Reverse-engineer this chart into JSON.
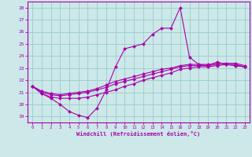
{
  "xlabel": "Windchill (Refroidissement éolien,°C)",
  "ylim": [
    18.5,
    28.5
  ],
  "xlim": [
    -0.5,
    23.5
  ],
  "yticks": [
    19,
    20,
    21,
    22,
    23,
    24,
    25,
    26,
    27,
    28
  ],
  "xticks": [
    0,
    1,
    2,
    3,
    4,
    5,
    6,
    7,
    8,
    9,
    10,
    11,
    12,
    13,
    14,
    15,
    16,
    17,
    18,
    19,
    20,
    21,
    22,
    23
  ],
  "bg_color": "#cce8e8",
  "line_color": "#aa00aa",
  "grid_color": "#99cccc",
  "series": [
    {
      "y": [
        21.5,
        20.9,
        20.5,
        20.0,
        19.4,
        19.1,
        18.9,
        19.7,
        21.2,
        23.1,
        24.6,
        24.8,
        25.0,
        25.8,
        26.3,
        26.3,
        28.0,
        23.9,
        23.3,
        23.2,
        23.5,
        23.3,
        23.2,
        23.1
      ]
    },
    {
      "y": [
        21.5,
        21.1,
        20.9,
        20.8,
        20.9,
        21.0,
        21.1,
        21.3,
        21.6,
        21.9,
        22.1,
        22.3,
        22.5,
        22.7,
        22.9,
        23.0,
        23.2,
        23.3,
        23.3,
        23.3,
        23.4,
        23.4,
        23.4,
        23.2
      ]
    },
    {
      "y": [
        21.5,
        21.0,
        20.8,
        20.7,
        20.8,
        20.9,
        21.0,
        21.2,
        21.4,
        21.7,
        21.9,
        22.1,
        22.3,
        22.5,
        22.7,
        22.9,
        23.1,
        23.2,
        23.2,
        23.2,
        23.3,
        23.3,
        23.3,
        23.1
      ]
    },
    {
      "y": [
        21.5,
        20.9,
        20.6,
        20.5,
        20.5,
        20.5,
        20.6,
        20.8,
        21.0,
        21.2,
        21.5,
        21.7,
        22.0,
        22.2,
        22.4,
        22.6,
        22.9,
        23.0,
        23.1,
        23.1,
        23.2,
        23.3,
        23.2,
        23.1
      ]
    }
  ]
}
